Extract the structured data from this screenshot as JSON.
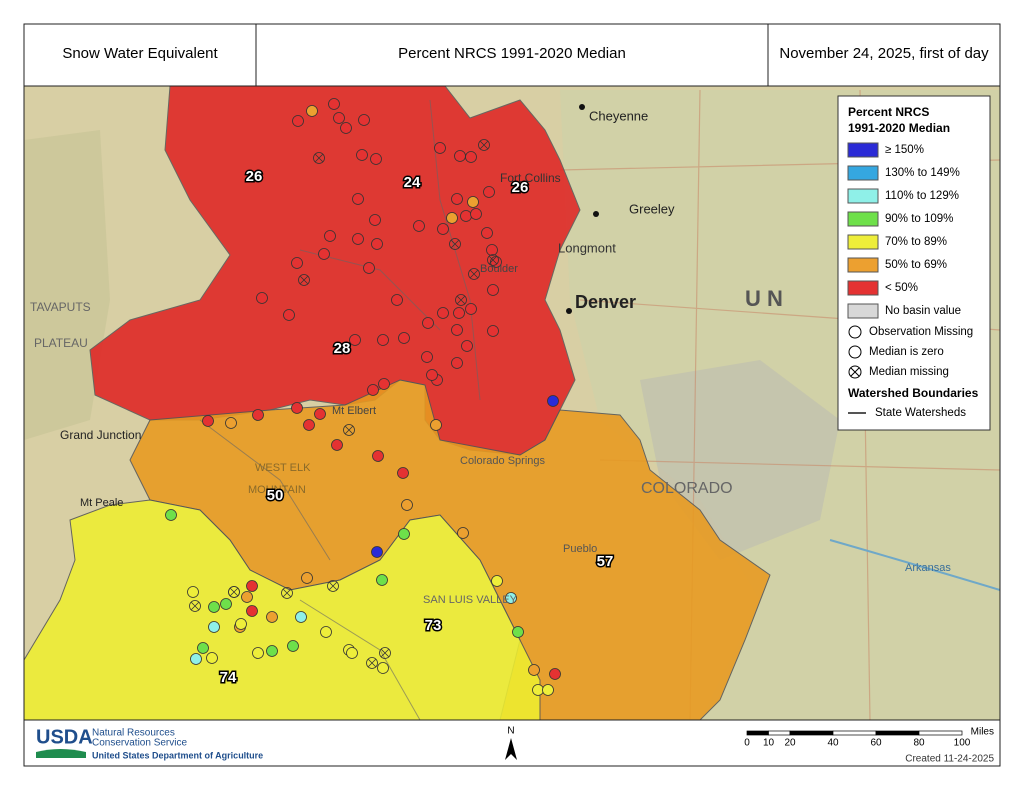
{
  "header": {
    "left": "Snow Water Equivalent",
    "center": "Percent NRCS 1991-2020 Median",
    "right": "November 24, 2025, first of day"
  },
  "legend": {
    "title": [
      "Percent NRCS",
      "1991-2020 Median"
    ],
    "classes": [
      {
        "label": "≥ 150%",
        "color": "#2b2bd6"
      },
      {
        "label": "130% to 149%",
        "color": "#35a7e0"
      },
      {
        "label": "110% to 129%",
        "color": "#8ff0e8"
      },
      {
        "label": "90% to 109%",
        "color": "#6ee04a"
      },
      {
        "label": "70% to 89%",
        "color": "#eeee3a"
      },
      {
        "label": "50% to 69%",
        "color": "#eca030"
      },
      {
        "label": "< 50%",
        "color": "#e43232"
      },
      {
        "label": "No basin value",
        "color": "#d8d8d8"
      }
    ],
    "symbols": [
      "Observation Missing",
      "Median is zero",
      "Median missing"
    ],
    "boundaries_title": "Watershed Boundaries",
    "boundaries": "State Watersheds"
  },
  "basins": [
    "26",
    "24",
    "26",
    "28",
    "50",
    "57",
    "73",
    "74"
  ],
  "places": [
    "Cheyenne",
    "Fort Collins",
    "Greeley",
    "Longmont",
    "Boulder",
    "Denver",
    "Colorado Springs",
    "Pueblo",
    "Grand Junction",
    "Mt Peale",
    "Arkansas",
    "COLORADO",
    "U N",
    "TAVAPUTS",
    "PLATEAU",
    "WEST ELK",
    "MOUNTAIN",
    "SAN LUIS VALLEY",
    "Mt Elbert"
  ],
  "footer": {
    "logo": "USDA",
    "agency": [
      "Natural Resources",
      "Conservation Service"
    ],
    "department": "United States Department of Agriculture",
    "north": "N",
    "scale_ticks": [
      0,
      10,
      20,
      40,
      60,
      80,
      100
    ],
    "scale_unit": "Miles",
    "created": "Created 11-24-2025"
  }
}
